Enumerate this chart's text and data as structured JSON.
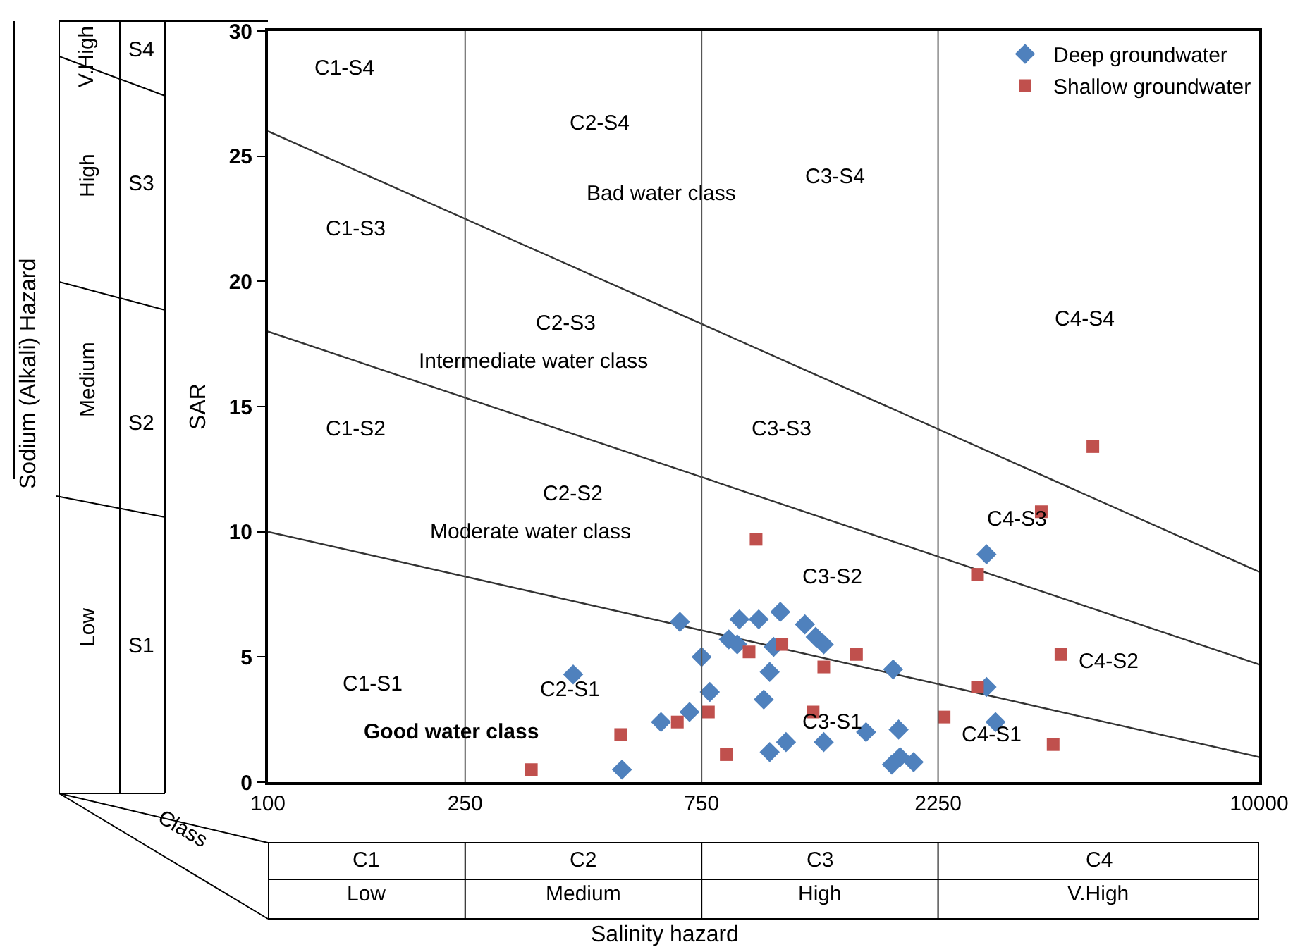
{
  "chart_data": {
    "type": "scatter",
    "xlabel": "Salinity hazard",
    "ylabel": "SAR",
    "log": "x",
    "xlim": [
      100,
      10000
    ],
    "xticks": [
      100,
      250,
      750,
      2250,
      10000
    ],
    "ylim": [
      0,
      30
    ],
    "yticks": [
      0,
      5,
      10,
      15,
      20,
      25,
      30
    ],
    "grid": false,
    "legend": "top right",
    "series": [
      {
        "name": "Deep groundwater",
        "color": "#4f81bd",
        "marker": "diamond",
        "x": [
          678,
          413,
          518,
          621,
          709,
          750,
          779,
          851,
          894,
          885,
          978,
          1081,
          1212,
          1274,
          1323,
          1048,
          1029,
          1001,
          1110,
          1029,
          1323,
          1610,
          2818,
          1826,
          2818,
          2938,
          1873,
          1886,
          1815,
          2008
        ],
        "values": [
          6.4,
          4.3,
          0.5,
          2.4,
          2.8,
          5.0,
          3.6,
          5.7,
          6.5,
          5.5,
          6.5,
          6.8,
          6.3,
          5.8,
          5.5,
          5.4,
          4.4,
          3.3,
          1.6,
          1.2,
          1.6,
          2.0,
          9.1,
          4.5,
          3.8,
          2.4,
          2.1,
          1.0,
          0.7,
          0.8
        ]
      },
      {
        "name": "Shallow groundwater",
        "color": "#c0504d",
        "marker": "square",
        "x": [
          966,
          1089,
          935,
          1323,
          1540,
          1259,
          774,
          670,
          515,
          340,
          841,
          4618,
          3634,
          2702,
          3982,
          2702,
          2314,
          3840
        ],
        "values": [
          9.7,
          5.5,
          5.2,
          4.6,
          5.1,
          2.8,
          2.8,
          2.4,
          1.9,
          0.5,
          1.1,
          13.4,
          10.8,
          8.3,
          5.1,
          3.8,
          2.6,
          1.5
        ]
      },
      {
        "type": "line",
        "color": "#333333",
        "x": [
          100,
          10000
        ],
        "values": [
          10,
          1
        ]
      },
      {
        "type": "line",
        "color": "#333333",
        "x": [
          100,
          10000
        ],
        "values": [
          18,
          4.7
        ]
      },
      {
        "type": "line",
        "color": "#333333",
        "x": [
          100,
          10000
        ],
        "values": [
          26,
          8.4
        ]
      }
    ],
    "ref_lines": [
      {
        "axis": "x",
        "value": 250,
        "color": "#555555"
      },
      {
        "axis": "x",
        "value": 750,
        "color": "#555555"
      },
      {
        "axis": "x",
        "value": 2250,
        "color": "#555555"
      }
    ],
    "annotations": [
      "Sodium (Alkali) Hazard",
      "V.High",
      "High",
      "Medium",
      "Low",
      "S4",
      "S3",
      "S2",
      "S1",
      "Class",
      "C1",
      "C2",
      "C3",
      "C4",
      "Low",
      "Medium",
      "High",
      "V.High",
      "C1-S4",
      "C2-S4",
      "C3-S4",
      "Bad water class",
      "C1-S3",
      "C2-S3",
      "Intermediate water class",
      "C4-S4",
      "C1-S2",
      "C3-S3",
      "C2-S2",
      "Moderate water class",
      "C4-S3",
      "C3-S2",
      "C4-S2",
      "C1-S1",
      "C2-S1",
      "Good water class",
      "C3-S1",
      "C4-S1"
    ]
  }
}
